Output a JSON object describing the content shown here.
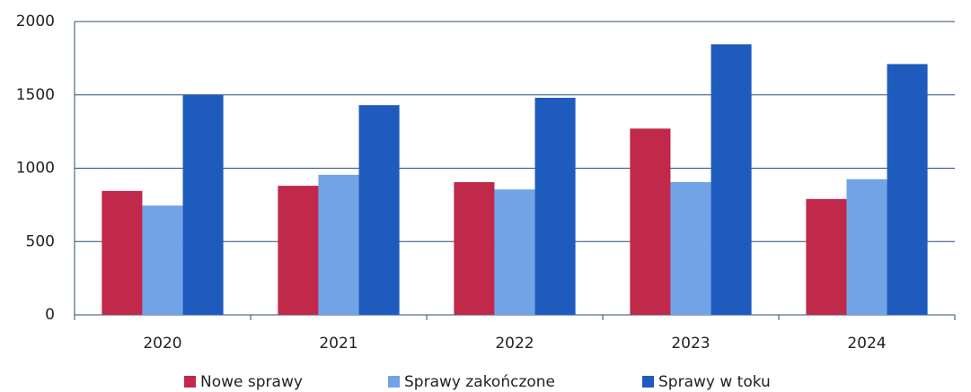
{
  "chart_data": {
    "type": "bar",
    "categories": [
      "2020",
      "2021",
      "2022",
      "2023",
      "2024"
    ],
    "series": [
      {
        "name": "Nowe sprawy",
        "color": "#c0294a",
        "values": [
          845,
          880,
          905,
          1270,
          790
        ]
      },
      {
        "name": "Sprawy zakończone",
        "color": "#71a3e6",
        "values": [
          745,
          955,
          855,
          905,
          925
        ]
      },
      {
        "name": "Sprawy w toku",
        "color": "#1f5bbd",
        "values": [
          1500,
          1430,
          1480,
          1845,
          1710
        ]
      }
    ],
    "ylim": [
      0,
      2000
    ],
    "yticks": [
      0,
      500,
      1000,
      1500,
      2000
    ],
    "grid": true,
    "legend": "bottom"
  }
}
